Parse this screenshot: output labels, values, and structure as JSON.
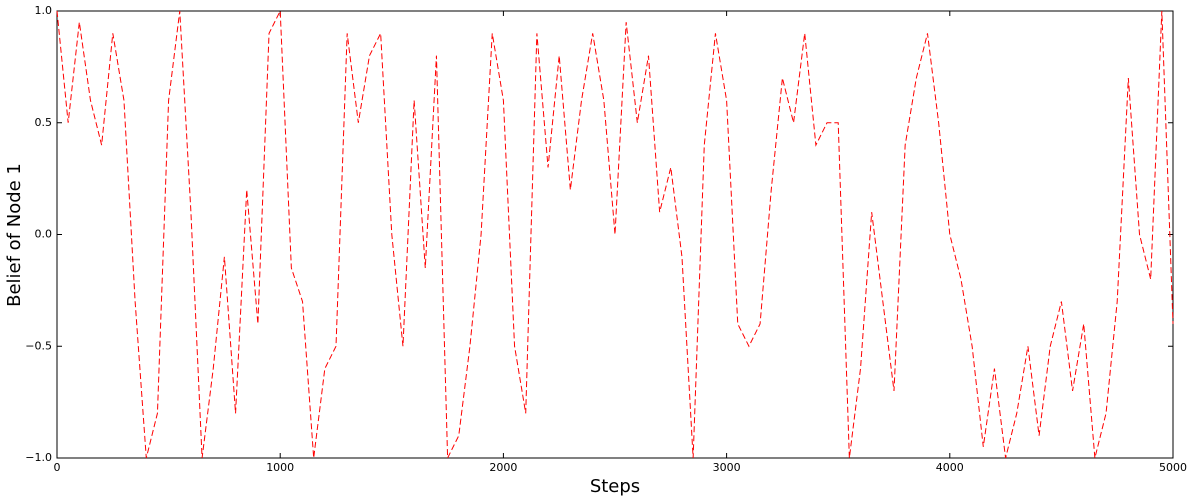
{
  "chart_data": {
    "type": "line",
    "xlabel": "Steps",
    "ylabel": "Belief of Node 1",
    "x": [
      0,
      50,
      100,
      150,
      200,
      250,
      300,
      350,
      400,
      450,
      500,
      550,
      600,
      650,
      700,
      750,
      800,
      850,
      900,
      950,
      1000,
      1050,
      1100,
      1150,
      1200,
      1250,
      1300,
      1350,
      1400,
      1450,
      1500,
      1550,
      1600,
      1650,
      1700,
      1750,
      1800,
      1850,
      1900,
      1950,
      2000,
      2050,
      2100,
      2150,
      2200,
      2250,
      2300,
      2350,
      2400,
      2450,
      2500,
      2550,
      2600,
      2650,
      2700,
      2750,
      2800,
      2850,
      2900,
      2950,
      3000,
      3050,
      3100,
      3150,
      3200,
      3250,
      3300,
      3350,
      3400,
      3450,
      3500,
      3550,
      3600,
      3650,
      3700,
      3750,
      3800,
      3850,
      3900,
      3950,
      4000,
      4050,
      4100,
      4150,
      4200,
      4250,
      4300,
      4350,
      4400,
      4450,
      4500,
      4550,
      4600,
      4650,
      4700,
      4750,
      4800,
      4850,
      4900,
      4950,
      5000
    ],
    "series": [
      {
        "color": "#ff0000",
        "dashed": true,
        "values": [
          1.0,
          0.5,
          0.95,
          0.6,
          0.4,
          0.9,
          0.6,
          -0.3,
          -1.0,
          -0.8,
          0.6,
          1.0,
          0.1,
          -1.0,
          -0.6,
          -0.1,
          -0.8,
          0.2,
          -0.4,
          0.9,
          1.0,
          -0.15,
          -0.3,
          -1.0,
          -0.6,
          -0.5,
          0.9,
          0.5,
          0.8,
          0.9,
          0.0,
          -0.5,
          0.6,
          -0.15,
          0.8,
          -1.0,
          -0.9,
          -0.5,
          0.0,
          0.9,
          0.6,
          -0.5,
          -0.8,
          0.9,
          0.3,
          0.8,
          0.2,
          0.6,
          0.9,
          0.6,
          0.0,
          0.95,
          0.5,
          0.8,
          0.1,
          0.3,
          -0.1,
          -1.0,
          0.4,
          0.9,
          0.6,
          -0.4,
          -0.5,
          -0.4,
          0.2,
          0.7,
          0.5,
          0.9,
          0.4,
          0.5,
          0.5,
          -1.0,
          -0.6,
          0.1,
          -0.3,
          -0.7,
          0.4,
          0.7,
          0.9,
          0.5,
          0.0,
          -0.2,
          -0.5,
          -0.95,
          -0.6,
          -1.0,
          -0.8,
          -0.5,
          -0.9,
          -0.5,
          -0.3,
          -0.7,
          -0.4,
          -1.0,
          -0.8,
          -0.3,
          0.7,
          0.0,
          -0.2,
          1.0,
          -0.4
        ]
      }
    ],
    "xlim": [
      0,
      5000
    ],
    "xticks": [
      0,
      1000,
      2000,
      3000,
      4000,
      5000
    ],
    "ylim": [
      -1,
      1
    ],
    "yticks": [
      {
        "value": -1,
        "label": "−1.0"
      },
      {
        "value": -0.5,
        "label": "−0.5"
      },
      {
        "value": 0,
        "label": "0.0"
      },
      {
        "value": 0.5,
        "label": "0.5"
      },
      {
        "value": 1,
        "label": "1.0"
      }
    ]
  }
}
